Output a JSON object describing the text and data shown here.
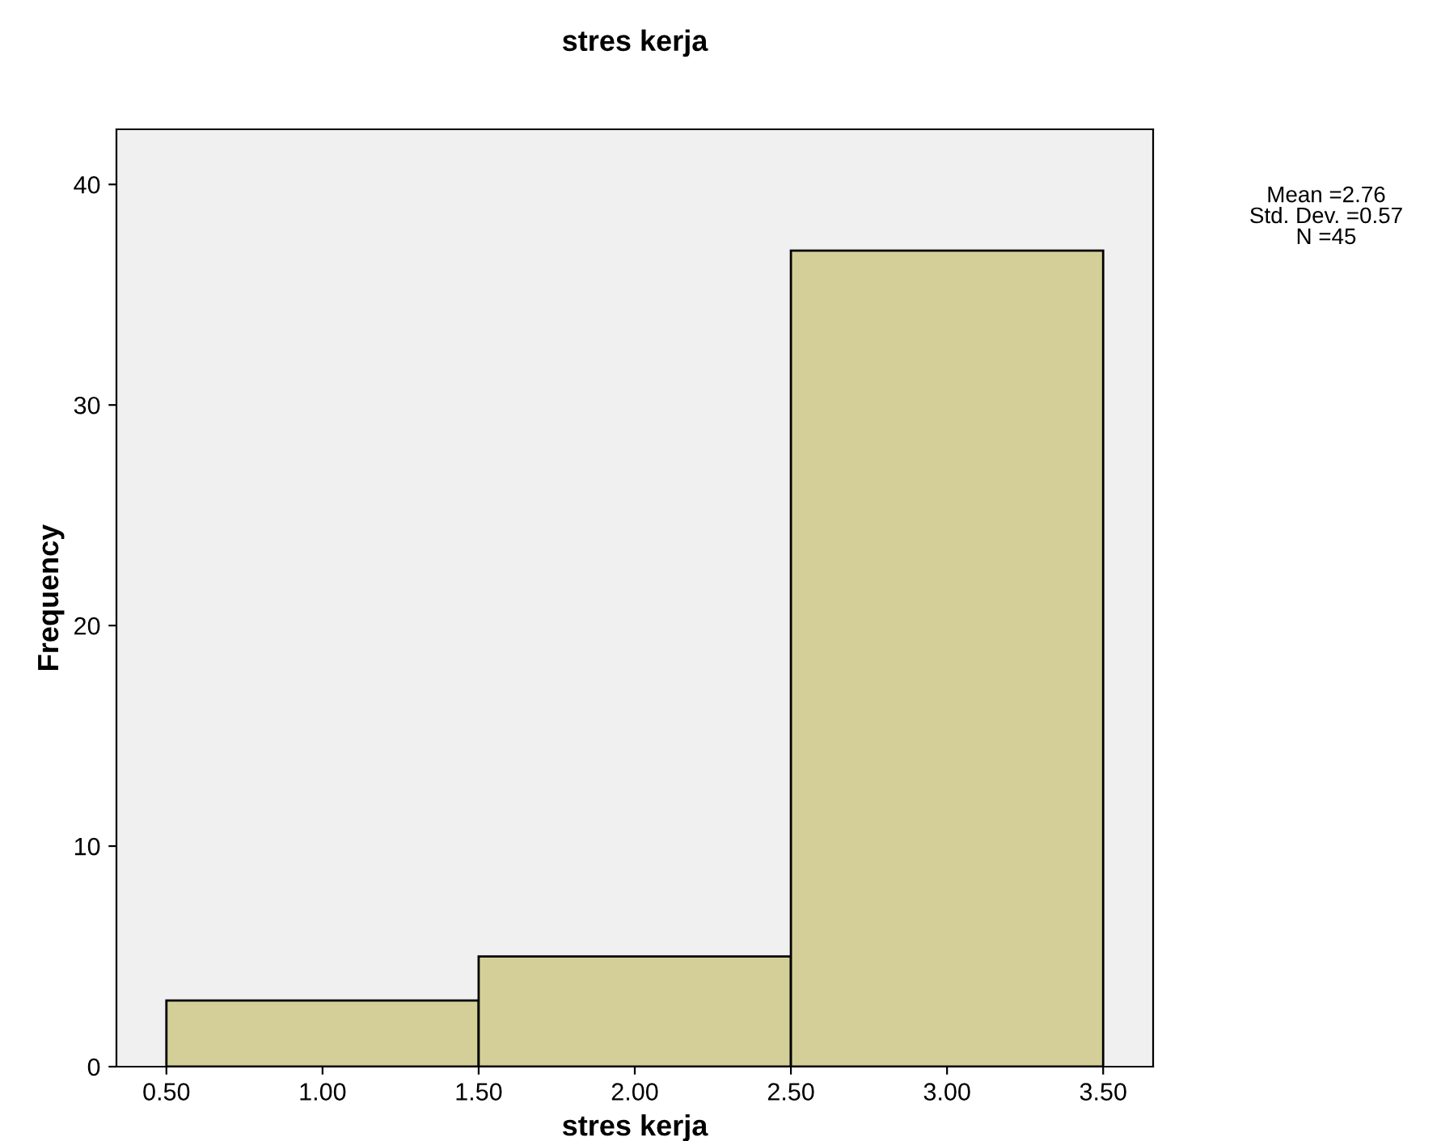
{
  "chart_data": {
    "type": "histogram",
    "title": "stres kerja",
    "xlabel": "stres kerja",
    "ylabel": "Frequency",
    "bins": [
      0.5,
      1.5,
      2.5,
      3.5
    ],
    "values": [
      3,
      5,
      37
    ],
    "color": "#d4cf98",
    "xlim": [
      0.34,
      3.66
    ],
    "ylim": [
      0,
      42.5
    ],
    "xticks": [
      {
        "value": 0.5,
        "label": "0.50"
      },
      {
        "value": 1.0,
        "label": "1.00"
      },
      {
        "value": 1.5,
        "label": "1.50"
      },
      {
        "value": 2.0,
        "label": "2.00"
      },
      {
        "value": 2.5,
        "label": "2.50"
      },
      {
        "value": 3.0,
        "label": "3.00"
      },
      {
        "value": 3.5,
        "label": "3.50"
      }
    ],
    "yticks": [
      0,
      10,
      20,
      30,
      40
    ],
    "annotations": [
      "Mean =2.76\nStd. Dev. =0.57\nN =45"
    ],
    "grid": false,
    "legend": false
  }
}
